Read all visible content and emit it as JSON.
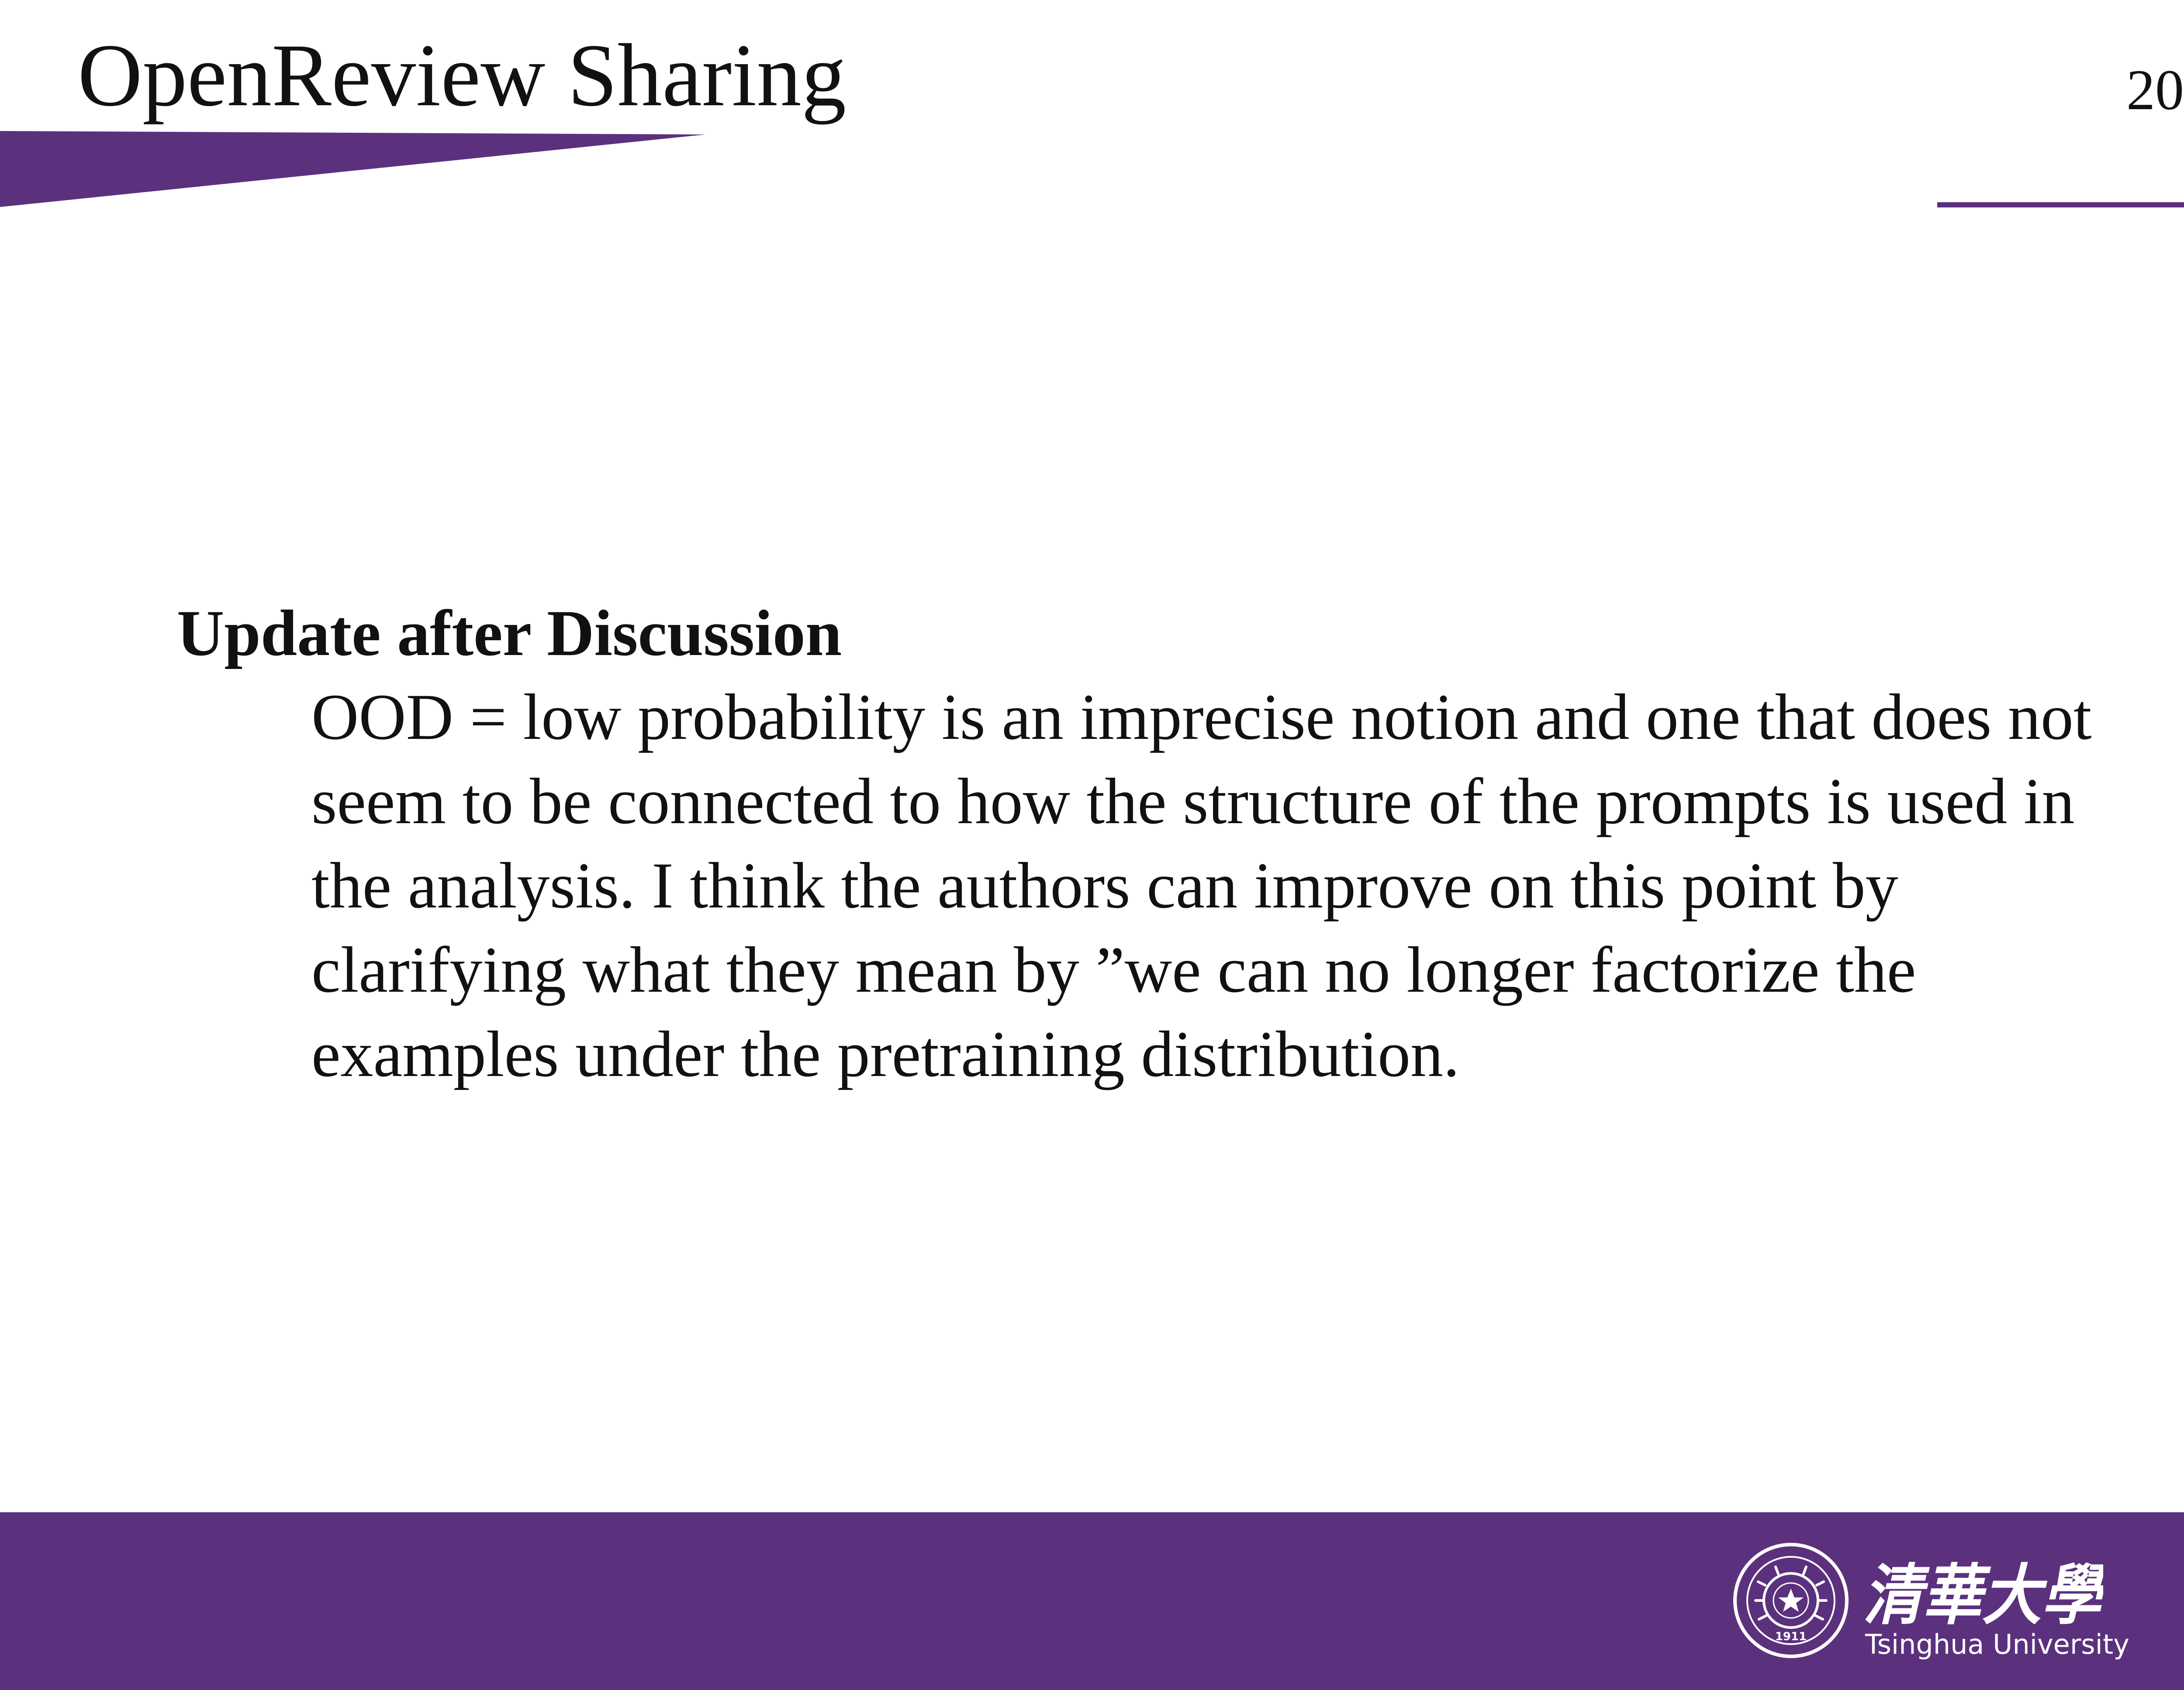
{
  "slide": {
    "title": "OpenReview Sharing",
    "page_number": "20"
  },
  "block": {
    "title": "Update after Discussion",
    "body": "OOD = low probability is an imprecise notion and one that does not seem to be connected to how the structure of the prompts is used in the analysis. I think the authors can improve on this point by clarifying what they mean by ”we can no longer factorize the examples under the pretraining distribution."
  },
  "footer": {
    "logo_chinese": "清華大學",
    "logo_english": "Tsinghua University",
    "seal_year": "1911"
  },
  "colors": {
    "brand_purple": "#5b317d",
    "footer_text": "#ffffff",
    "text": "#111111"
  }
}
